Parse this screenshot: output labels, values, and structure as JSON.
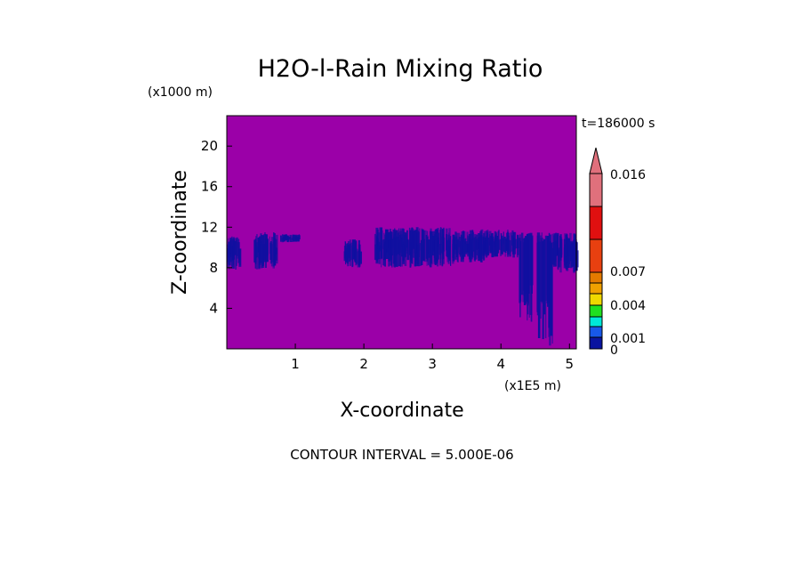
{
  "chart_data": {
    "type": "heatmap",
    "title": "H2O-l-Rain Mixing Ratio",
    "time_label": "t=186000 s",
    "xlabel": "X-coordinate",
    "ylabel": "Z-coordinate",
    "x_unit": "(x1E5 m)",
    "y_unit": "(x1000 m)",
    "xlim": [
      0,
      5.1
    ],
    "ylim": [
      0,
      23
    ],
    "x_ticks": [
      "1",
      "2",
      "3",
      "4",
      "5"
    ],
    "y_ticks": [
      "4",
      "8",
      "12",
      "16",
      "20"
    ],
    "x_tick_values": [
      1,
      2,
      3,
      4,
      5
    ],
    "y_tick_values": [
      4,
      8,
      12,
      16,
      20
    ],
    "background_value": "below 0",
    "rain_regions": [
      {
        "x": [
          0.0,
          0.18
        ],
        "z": [
          7.8,
          11.2
        ]
      },
      {
        "x": [
          0.38,
          0.72
        ],
        "z": [
          7.8,
          11.5
        ]
      },
      {
        "x": [
          0.78,
          1.05
        ],
        "z": [
          10.5,
          11.3
        ]
      },
      {
        "x": [
          1.7,
          1.95
        ],
        "z": [
          8.0,
          10.8
        ]
      },
      {
        "x": [
          2.15,
          3.3
        ],
        "z": [
          8.0,
          12.0
        ]
      },
      {
        "x": [
          3.3,
          3.75
        ],
        "z": [
          8.5,
          11.8
        ]
      },
      {
        "x": [
          3.75,
          4.25
        ],
        "z": [
          9.0,
          11.8
        ]
      },
      {
        "x": [
          4.25,
          4.5
        ],
        "z": [
          2.3,
          11.5
        ]
      },
      {
        "x": [
          4.5,
          4.75
        ],
        "z": [
          0.0,
          11.5
        ]
      },
      {
        "x": [
          4.75,
          5.1
        ],
        "z": [
          7.5,
          11.5
        ]
      }
    ],
    "colorbar": {
      "labels": [
        "0.016",
        "0.007",
        "0.004",
        "0.001",
        "0"
      ],
      "colors": [
        "#e0707c",
        "#e01010",
        "#e84010",
        "#e47a00",
        "#f0a000",
        "#f0d800",
        "#20e020",
        "#00e8d8",
        "#1858e8",
        "#0a14a0"
      ],
      "extend": "max"
    },
    "colors": {
      "background_field": "#9b00a8",
      "rain_field": "#1010a0"
    },
    "contour_interval": "CONTOUR INTERVAL = 5.000E-06"
  }
}
